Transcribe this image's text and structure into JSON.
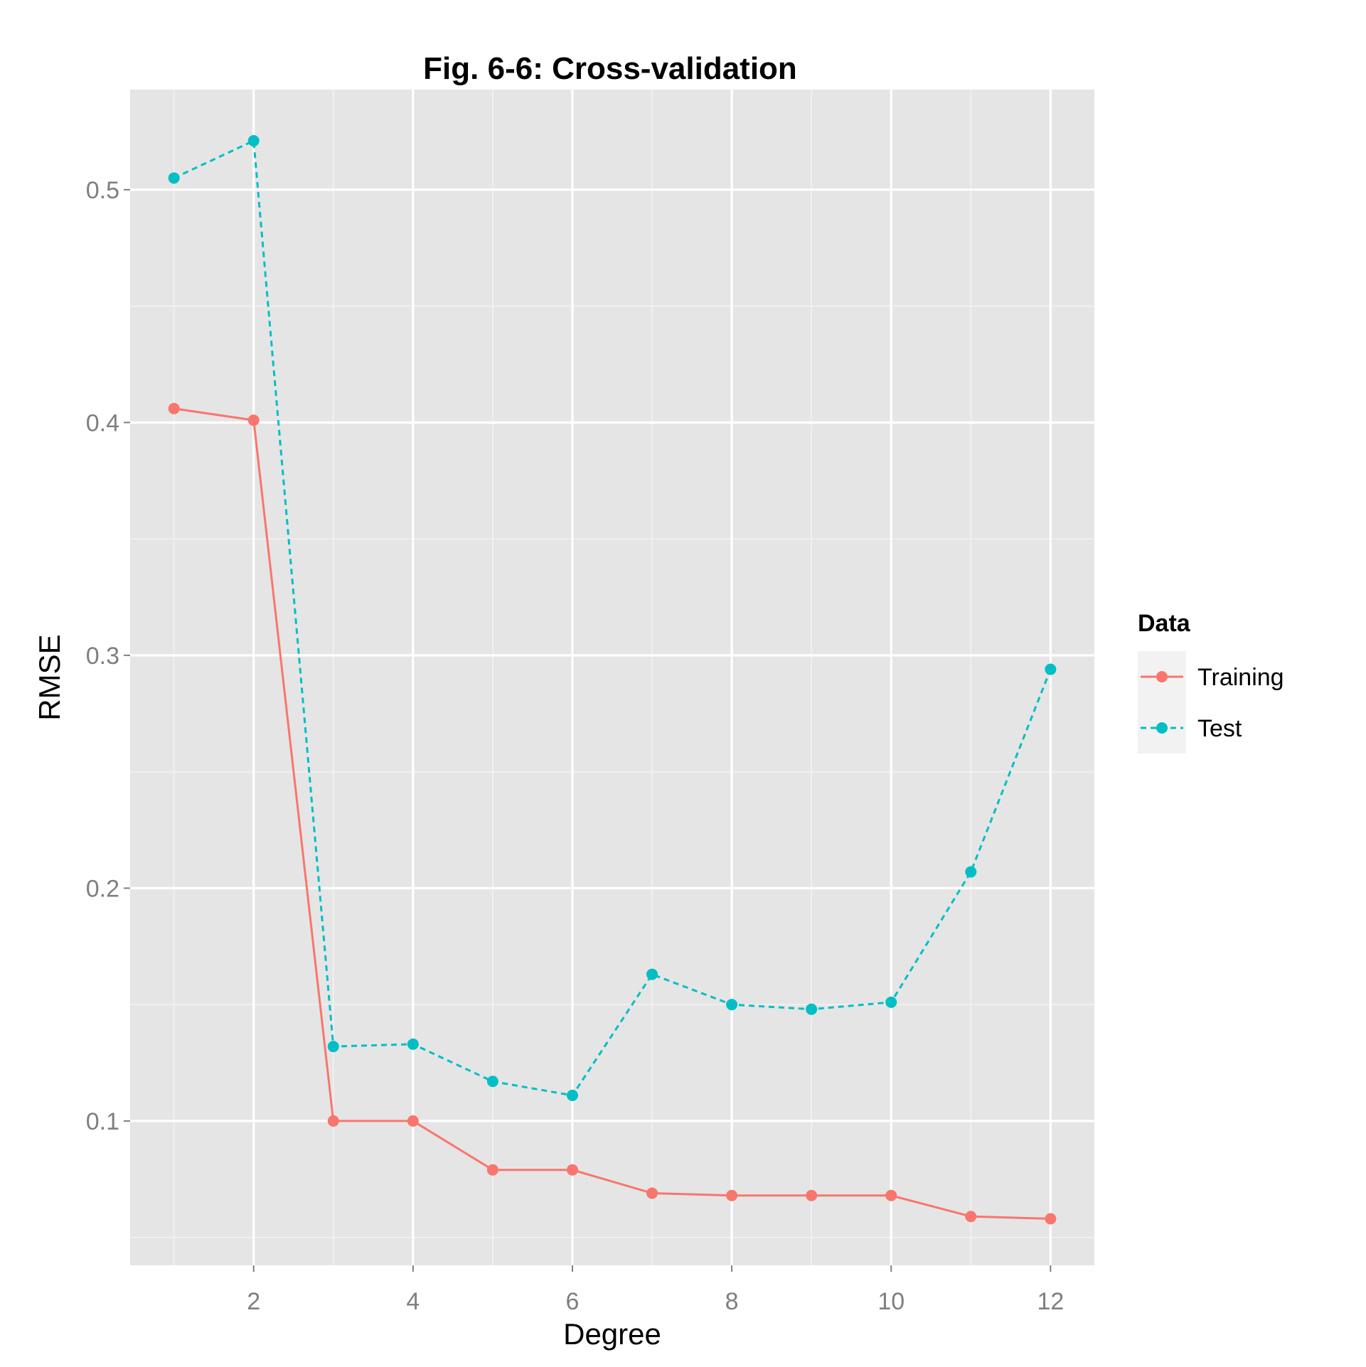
{
  "chart_data": {
    "type": "line",
    "title": "Fig. 6-6: Cross-validation",
    "xlabel": "Degree",
    "ylabel": "RMSE",
    "x": [
      1,
      2,
      3,
      4,
      5,
      6,
      7,
      8,
      9,
      10,
      11,
      12
    ],
    "x_ticks": [
      2,
      4,
      6,
      8,
      10,
      12
    ],
    "x_tick_labels": [
      "2",
      "4",
      "6",
      "8",
      "10",
      "12"
    ],
    "y_ticks": [
      0.1,
      0.2,
      0.3,
      0.4,
      0.5
    ],
    "y_tick_labels": [
      "0.1",
      "0.2",
      "0.3",
      "0.4",
      "0.5"
    ],
    "xlim": [
      0.45,
      12.55
    ],
    "ylim": [
      0.038,
      0.543
    ],
    "grid": true,
    "legend": {
      "title": "Data",
      "position": "right"
    },
    "series": [
      {
        "name": "Training",
        "color": "#F8766D",
        "line_style": "solid",
        "values": [
          0.406,
          0.401,
          0.1,
          0.1,
          0.079,
          0.079,
          0.069,
          0.068,
          0.068,
          0.068,
          0.059,
          0.058
        ]
      },
      {
        "name": "Test",
        "color": "#00BFC4",
        "line_style": "dashed",
        "values": [
          0.505,
          0.521,
          0.132,
          0.133,
          0.117,
          0.111,
          0.163,
          0.15,
          0.148,
          0.151,
          0.207,
          0.294
        ]
      }
    ]
  }
}
